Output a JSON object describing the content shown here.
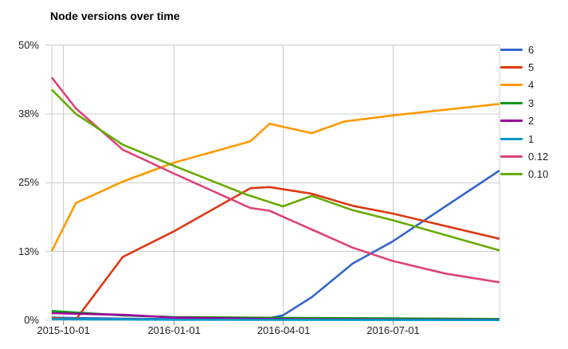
{
  "chart_data": {
    "type": "line",
    "title": "Node versions over time",
    "x_axis": {
      "tick_labels": [
        "2015-10-01",
        "2016-01-01",
        "2016-04-01",
        "2016-07-01"
      ],
      "range": [
        "2015-09-22",
        "2016-09-28"
      ]
    },
    "y_axis": {
      "tick_labels": [
        "0%",
        "13%",
        "25%",
        "38%",
        "50%"
      ],
      "tick_values": [
        0,
        12.5,
        25,
        37.5,
        50
      ],
      "range": [
        0,
        50
      ],
      "unit": "percent"
    },
    "grid": true,
    "legend_position": "right",
    "grid_color": "#cccccc",
    "series": [
      {
        "name": "6",
        "color": "#3366CC",
        "points": [
          [
            "2015-09-22",
            0.5
          ],
          [
            "2015-10-12",
            0.4
          ],
          [
            "2015-11-20",
            0.3
          ],
          [
            "2016-01-01",
            0.2
          ],
          [
            "2016-03-01",
            0.2
          ],
          [
            "2016-03-21",
            0.4
          ],
          [
            "2016-04-01",
            0.9
          ],
          [
            "2016-04-25",
            4.2
          ],
          [
            "2016-05-29",
            10.3
          ],
          [
            "2016-07-01",
            14.3
          ],
          [
            "2016-09-28",
            27.2
          ]
        ]
      },
      {
        "name": "5",
        "color": "#DC3912",
        "points": [
          [
            "2015-09-22",
            0.4
          ],
          [
            "2015-10-12",
            0.15
          ],
          [
            "2015-11-20",
            11.5
          ],
          [
            "2016-01-01",
            16.1
          ],
          [
            "2016-03-05",
            24.0
          ],
          [
            "2016-03-21",
            24.2
          ],
          [
            "2016-04-25",
            23.0
          ],
          [
            "2016-05-29",
            20.8
          ],
          [
            "2016-07-01",
            19.4
          ],
          [
            "2016-09-28",
            14.8
          ]
        ]
      },
      {
        "name": "4",
        "color": "#FF9900",
        "points": [
          [
            "2015-09-22",
            12.6
          ],
          [
            "2015-10-12",
            21.3
          ],
          [
            "2015-11-20",
            25.2
          ],
          [
            "2016-01-01",
            28.6
          ],
          [
            "2016-03-05",
            32.5
          ],
          [
            "2016-03-21",
            35.7
          ],
          [
            "2016-04-25",
            34.0
          ],
          [
            "2016-05-22",
            36.1
          ],
          [
            "2016-07-01",
            37.2
          ],
          [
            "2016-09-28",
            39.3
          ]
        ]
      },
      {
        "name": "3",
        "color": "#109618",
        "points": [
          [
            "2015-09-22",
            1.7
          ],
          [
            "2015-11-20",
            0.9
          ],
          [
            "2016-01-01",
            0.6
          ],
          [
            "2016-04-01",
            0.45
          ],
          [
            "2016-07-01",
            0.35
          ],
          [
            "2016-09-28",
            0.25
          ]
        ]
      },
      {
        "name": "2",
        "color": "#990099",
        "points": [
          [
            "2015-09-22",
            1.3
          ],
          [
            "2015-11-20",
            1.0
          ],
          [
            "2016-01-01",
            0.5
          ],
          [
            "2016-04-01",
            0.2
          ],
          [
            "2016-09-28",
            0.1
          ]
        ]
      },
      {
        "name": "1",
        "color": "#0099C6",
        "points": [
          [
            "2015-09-22",
            0.2
          ],
          [
            "2016-01-01",
            0.1
          ],
          [
            "2016-09-28",
            0.05
          ]
        ]
      },
      {
        "name": "0.12",
        "color": "#DD4477",
        "points": [
          [
            "2015-09-22",
            44.1
          ],
          [
            "2015-10-12",
            38.5
          ],
          [
            "2015-11-20",
            31.0
          ],
          [
            "2016-01-01",
            26.7
          ],
          [
            "2016-03-05",
            20.4
          ],
          [
            "2016-03-21",
            19.9
          ],
          [
            "2016-04-25",
            16.5
          ],
          [
            "2016-05-29",
            13.2
          ],
          [
            "2016-07-01",
            10.8
          ],
          [
            "2016-08-14",
            8.5
          ],
          [
            "2016-09-28",
            6.9
          ]
        ]
      },
      {
        "name": "0.10",
        "color": "#66AA00",
        "points": [
          [
            "2015-09-22",
            41.9
          ],
          [
            "2015-10-12",
            37.5
          ],
          [
            "2015-11-20",
            31.9
          ],
          [
            "2016-01-01",
            28.1
          ],
          [
            "2016-03-01",
            22.9
          ],
          [
            "2016-04-01",
            20.7
          ],
          [
            "2016-04-25",
            22.6
          ],
          [
            "2016-05-29",
            20.0
          ],
          [
            "2016-07-01",
            18.2
          ],
          [
            "2016-09-28",
            12.7
          ]
        ]
      }
    ]
  }
}
